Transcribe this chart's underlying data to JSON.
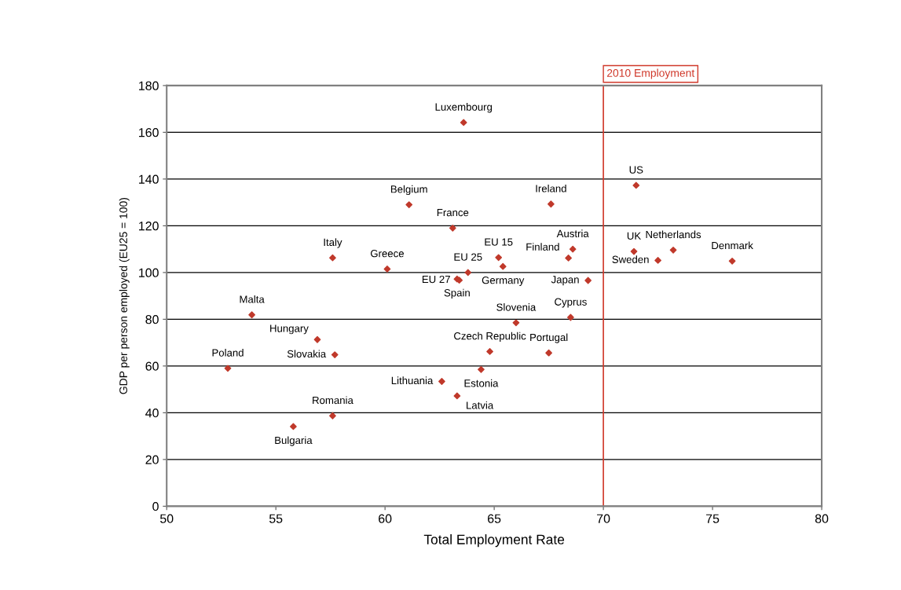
{
  "chart_data": {
    "type": "scatter",
    "xlabel": "Total Employment Rate",
    "ylabel": "GDP per person employed (EU25 = 100)",
    "xlim": [
      50,
      80
    ],
    "xticks": [
      50,
      55,
      60,
      65,
      70,
      75,
      80
    ],
    "ylim": [
      0,
      180
    ],
    "yticks": [
      0,
      20,
      40,
      60,
      80,
      100,
      120,
      140,
      160,
      180
    ],
    "grid": "y",
    "marker": "diamond",
    "series": [
      {
        "color": "#c0392b",
        "x": [
          63.6,
          61.1,
          63.1,
          57.6,
          60.1,
          63.8,
          63.3,
          63.4,
          65.2,
          65.4,
          53.9,
          67.6,
          71.5,
          68.6,
          68.4,
          69.3,
          71.4,
          73.2,
          72.5,
          75.9,
          56.9,
          57.7,
          52.8,
          64.8,
          62.6,
          64.4,
          63.3,
          55.8,
          57.6,
          66.0,
          68.5,
          67.5
        ],
        "values": [
          164.2,
          129.0,
          119.0,
          106.3,
          101.5,
          100.0,
          97.2,
          96.7,
          106.4,
          102.6,
          81.9,
          129.3,
          137.3,
          110.0,
          106.2,
          96.6,
          109.0,
          109.6,
          105.2,
          104.9,
          71.3,
          64.8,
          59.0,
          66.2,
          53.4,
          58.5,
          47.2,
          34.1,
          38.7,
          78.5,
          80.8,
          65.6
        ]
      }
    ],
    "ref_lines": [
      {
        "axis": "x",
        "value": 70,
        "label": "2010 Employment",
        "color": "#d0392b",
        "line_style": "solid"
      }
    ],
    "annotations": [
      {
        "text": "Luxembourg",
        "x": 63.6,
        "y": 164.2
      },
      {
        "text": "Belgium",
        "x": 61.1,
        "y": 129.0
      },
      {
        "text": "France",
        "x": 63.1,
        "y": 119.0
      },
      {
        "text": "Italy",
        "x": 57.6,
        "y": 106.3
      },
      {
        "text": "Greece",
        "x": 60.1,
        "y": 101.5
      },
      {
        "text": "EU 25",
        "x": 63.8,
        "y": 100.0
      },
      {
        "text": "Spain",
        "x": 63.3,
        "y": 97.2
      },
      {
        "text": "EU 27",
        "x": 63.4,
        "y": 96.7
      },
      {
        "text": "EU 15",
        "x": 65.2,
        "y": 106.4
      },
      {
        "text": "Germany",
        "x": 65.4,
        "y": 102.6
      },
      {
        "text": "Malta",
        "x": 53.9,
        "y": 81.9
      },
      {
        "text": "Ireland",
        "x": 67.6,
        "y": 129.3
      },
      {
        "text": "US",
        "x": 71.5,
        "y": 137.3
      },
      {
        "text": "Austria",
        "x": 68.6,
        "y": 110.0
      },
      {
        "text": "Finland",
        "x": 68.4,
        "y": 106.2
      },
      {
        "text": "Japan",
        "x": 69.3,
        "y": 96.6
      },
      {
        "text": "UK",
        "x": 71.4,
        "y": 109.0
      },
      {
        "text": "Netherlands",
        "x": 73.2,
        "y": 109.6
      },
      {
        "text": "Sweden",
        "x": 72.5,
        "y": 105.2
      },
      {
        "text": "Denmark",
        "x": 75.9,
        "y": 104.9
      },
      {
        "text": "Hungary",
        "x": 56.9,
        "y": 71.3
      },
      {
        "text": "Slovakia",
        "x": 57.7,
        "y": 64.8
      },
      {
        "text": "Poland",
        "x": 52.8,
        "y": 59.0
      },
      {
        "text": "Czech Republic",
        "x": 64.8,
        "y": 66.2
      },
      {
        "text": "Lithuania",
        "x": 62.6,
        "y": 53.4
      },
      {
        "text": "Estonia",
        "x": 64.4,
        "y": 58.5
      },
      {
        "text": "Latvia",
        "x": 63.3,
        "y": 47.2
      },
      {
        "text": "Bulgaria",
        "x": 55.8,
        "y": 34.1
      },
      {
        "text": "Romania",
        "x": 57.6,
        "y": 38.7
      },
      {
        "text": "Slovenia",
        "x": 66.0,
        "y": 78.5
      },
      {
        "text": "Cyprus",
        "x": 68.5,
        "y": 80.8
      },
      {
        "text": "Portugal",
        "x": 67.5,
        "y": 65.6
      }
    ]
  }
}
